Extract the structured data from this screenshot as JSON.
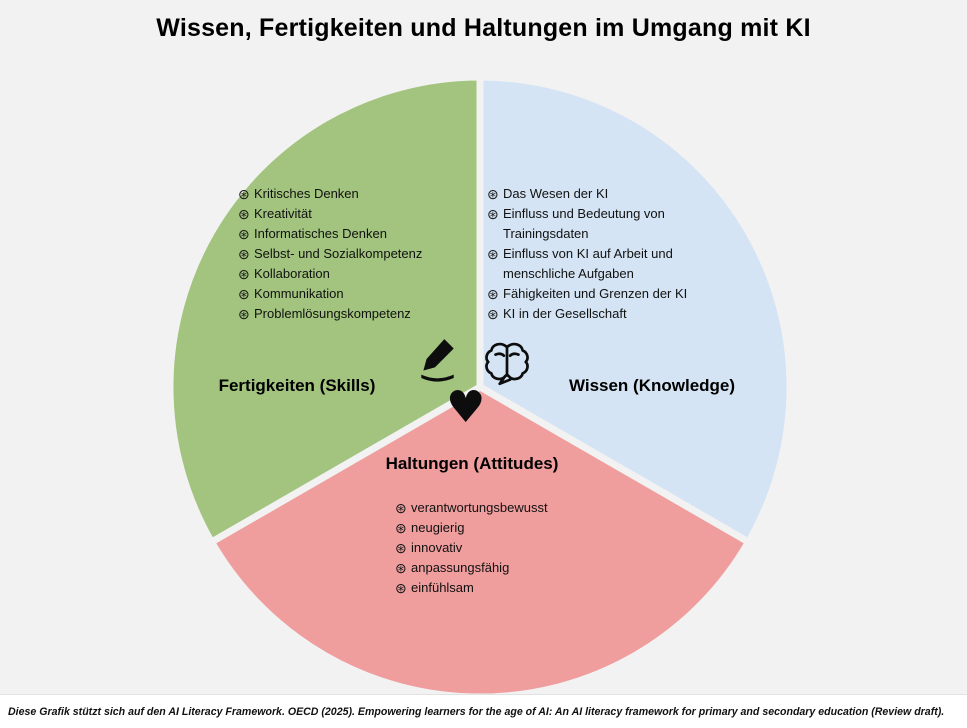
{
  "title": "Wissen, Fertigkeiten und Haltungen im Umgang mit KI",
  "colors": {
    "background": "#f2f2f2",
    "skills_green": "#a2c47e",
    "knowledge_blue": "#d4e4f4",
    "attitudes_pink": "#ef9d9d",
    "gap_stroke": "#f2f2f2",
    "icon_black": "#0d0d0d"
  },
  "icons": {
    "bullet_glyph": "⊛",
    "heart_glyph": "♥",
    "pencil": "pencil-writing-icon",
    "brain": "brain-icon",
    "heart": "heart-icon"
  },
  "segments": {
    "skills": {
      "label": "Fertigkeiten (Skills)",
      "items": [
        "Kritisches Denken",
        "Kreativität",
        "Informatisches Denken",
        "Selbst- und Sozialkompetenz",
        "Kollaboration",
        "Kommunikation",
        "Problemlösungskompetenz"
      ]
    },
    "knowledge": {
      "label": "Wissen (Knowledge)",
      "items": [
        "Das Wesen der KI",
        "Einfluss und Bedeutung von Trainingsdaten",
        "Einfluss von KI auf Arbeit und menschliche Aufgaben",
        "Fähigkeiten und Grenzen der KI",
        "KI in der Gesellschaft"
      ]
    },
    "attitudes": {
      "label": "Haltungen (Attitudes)",
      "items": [
        "verantwortungsbewusst",
        "neugierig",
        "innovativ",
        "anpassungsfähig",
        "einfühlsam"
      ]
    }
  },
  "footer": "Diese Grafik stützt sich auf den AI Literacy Framework. OECD (2025). Empowering learners for the age of AI: An AI literacy framework for primary and secondary education (Review draft)."
}
